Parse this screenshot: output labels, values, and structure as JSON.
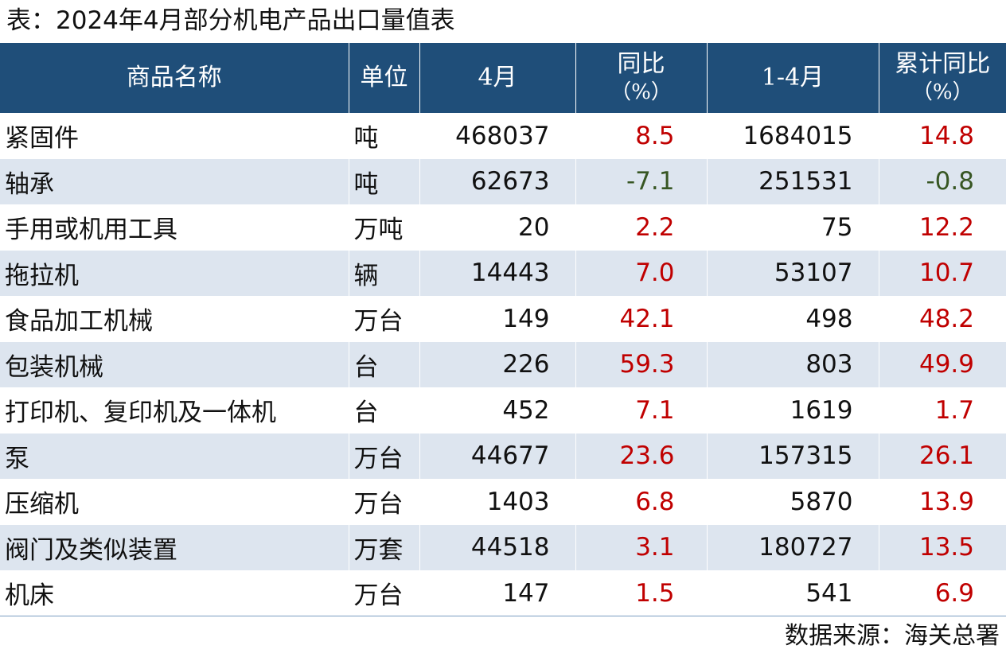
{
  "title": "表：2024年4月部分机电产品出口量值表",
  "headers": {
    "name": "商品名称",
    "unit": "单位",
    "april": "4月",
    "yoy": "同比",
    "yoy_unit": "（%）",
    "cum": "1-4月",
    "cum_yoy": "累计同比",
    "cum_yoy_unit": "（%）"
  },
  "colors": {
    "header_bg": "#1f4e79",
    "stripe_bg": "#dde5ef",
    "positive": "#c00000",
    "negative": "#375623"
  },
  "rows": [
    {
      "name": "紧固件",
      "unit": "吨",
      "april": "468037",
      "yoy": "8.5",
      "cum": "1684015",
      "cum_yoy": "14.8"
    },
    {
      "name": "轴承",
      "unit": "吨",
      "april": "62673",
      "yoy": "-7.1",
      "cum": "251531",
      "cum_yoy": "-0.8"
    },
    {
      "name": "手用或机用工具",
      "unit": "万吨",
      "april": "20",
      "yoy": "2.2",
      "cum": "75",
      "cum_yoy": "12.2"
    },
    {
      "name": "拖拉机",
      "unit": "辆",
      "april": "14443",
      "yoy": "7.0",
      "cum": "53107",
      "cum_yoy": "10.7"
    },
    {
      "name": "食品加工机械",
      "unit": "万台",
      "april": "149",
      "yoy": "42.1",
      "cum": "498",
      "cum_yoy": "48.2"
    },
    {
      "name": "包装机械",
      "unit": "台",
      "april": "226",
      "yoy": "59.3",
      "cum": "803",
      "cum_yoy": "49.9"
    },
    {
      "name": "打印机、复印机及一体机",
      "unit": "台",
      "april": "452",
      "yoy": "7.1",
      "cum": "1619",
      "cum_yoy": "1.7"
    },
    {
      "name": "泵",
      "unit": "万台",
      "april": "44677",
      "yoy": "23.6",
      "cum": "157315",
      "cum_yoy": "26.1"
    },
    {
      "name": "压缩机",
      "unit": "万台",
      "april": "1403",
      "yoy": "6.8",
      "cum": "5870",
      "cum_yoy": "13.9"
    },
    {
      "name": "阀门及类似装置",
      "unit": "万套",
      "april": "44518",
      "yoy": "3.1",
      "cum": "180727",
      "cum_yoy": "13.5"
    },
    {
      "name": "机床",
      "unit": "万台",
      "april": "147",
      "yoy": "1.5",
      "cum": "541",
      "cum_yoy": "6.9"
    }
  ],
  "source": "数据来源：海关总署"
}
